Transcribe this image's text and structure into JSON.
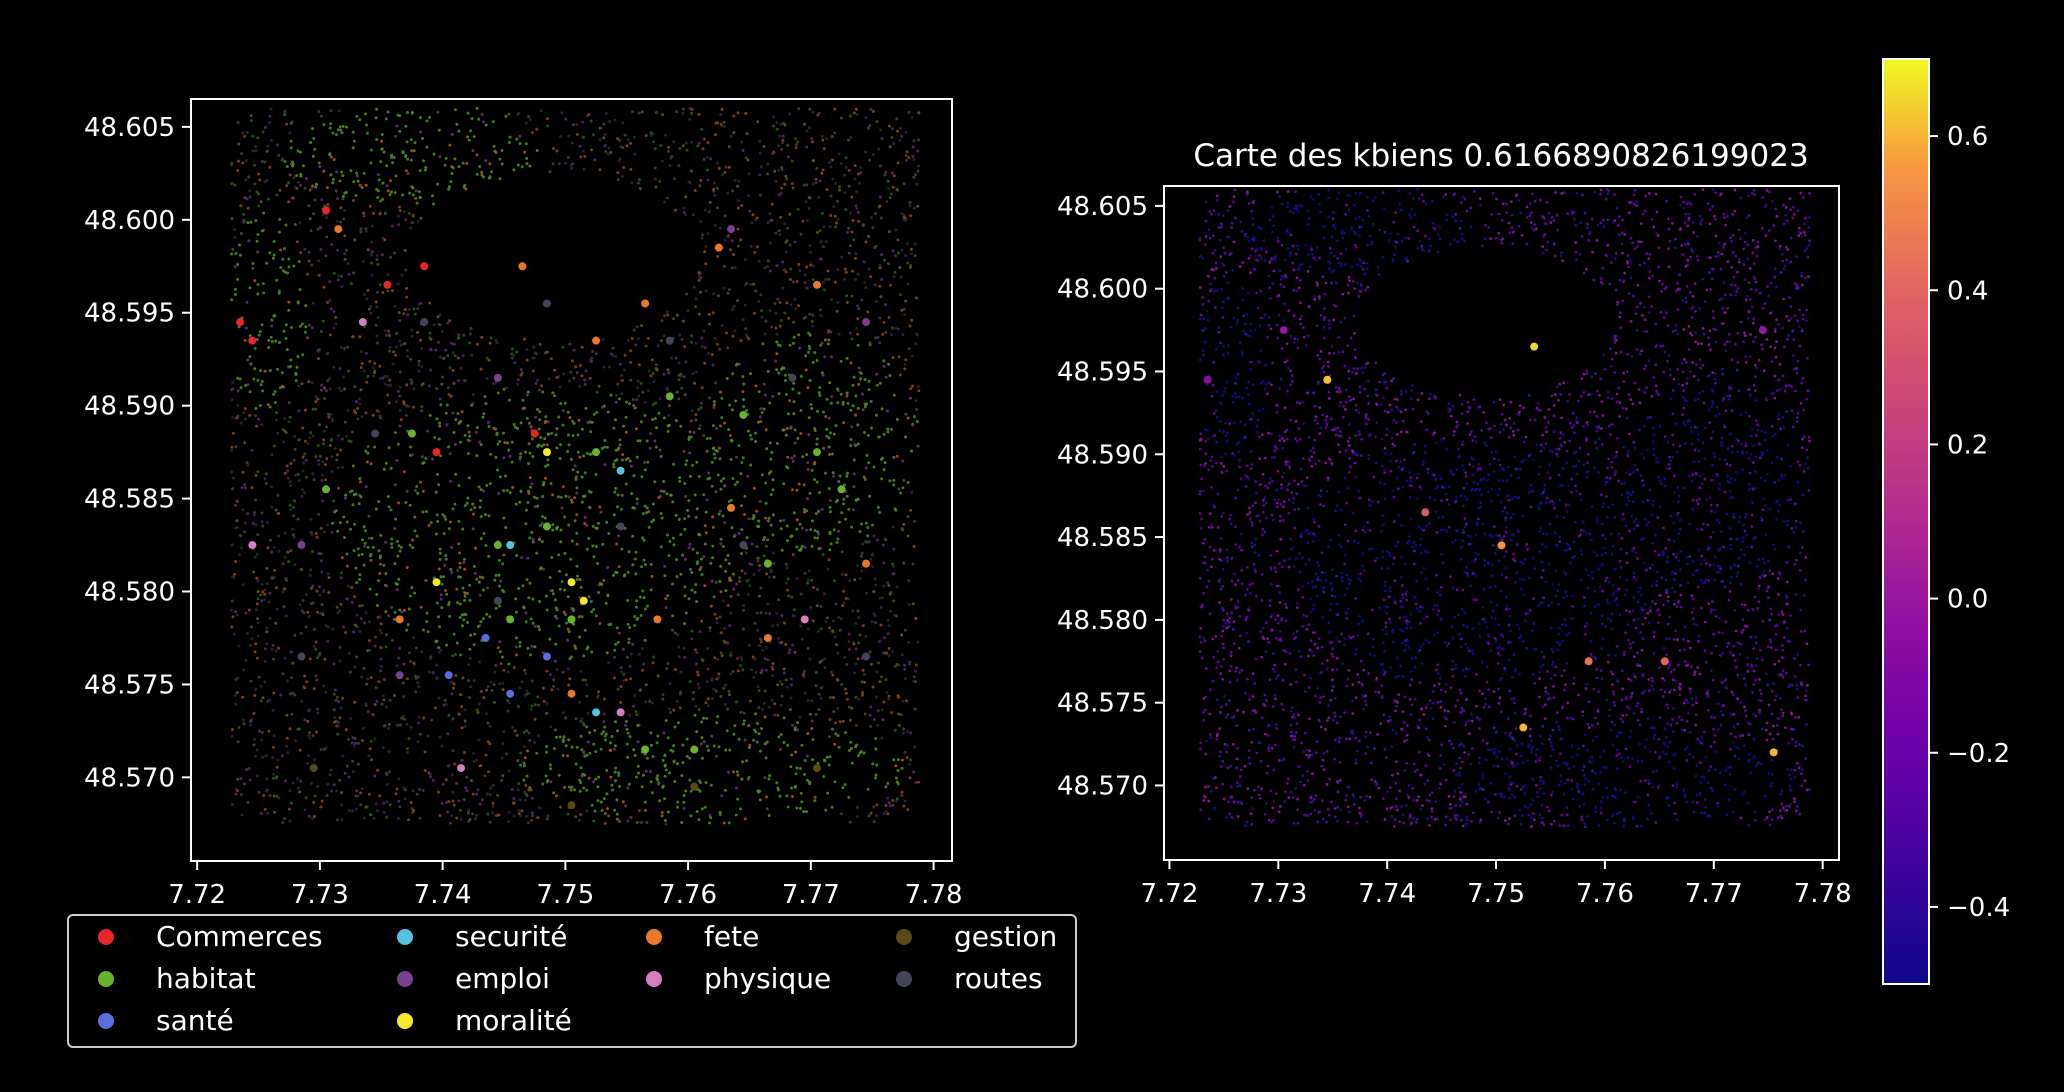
{
  "colors": {
    "background": "#000000",
    "axes_frame": "#ffffff",
    "text": "#ffffff"
  },
  "chart_data": [
    {
      "type": "scatter",
      "title": "",
      "xlabel": "",
      "ylabel": "",
      "xlim": [
        7.7195,
        7.7815
      ],
      "ylim": [
        48.5655,
        48.6065
      ],
      "x_ticks": [
        7.72,
        7.73,
        7.74,
        7.75,
        7.76,
        7.77,
        7.78
      ],
      "x_tick_labels": [
        "7.72",
        "7.73",
        "7.74",
        "7.75",
        "7.76",
        "7.77",
        "7.78"
      ],
      "y_ticks": [
        48.57,
        48.575,
        48.58,
        48.585,
        48.59,
        48.595,
        48.6,
        48.605
      ],
      "y_tick_labels": [
        "48.570",
        "48.575",
        "48.580",
        "48.585",
        "48.590",
        "48.595",
        "48.600",
        "48.605"
      ],
      "grid": false,
      "legend_placement": "bottom",
      "legend": [
        {
          "label": "Commerces",
          "color": "#e8262a"
        },
        {
          "label": "habitat",
          "color": "#67b22f"
        },
        {
          "label": "santé",
          "color": "#5b6ee0"
        },
        {
          "label": "securité",
          "color": "#55c3df"
        },
        {
          "label": "emploi",
          "color": "#7b3f8e"
        },
        {
          "label": "moralité",
          "color": "#f5ea2a"
        },
        {
          "label": "fete",
          "color": "#e8782a"
        },
        {
          "label": "physique",
          "color": "#d57ec0"
        },
        {
          "label": "gestion",
          "color": "#5a4a14"
        },
        {
          "label": "routes",
          "color": "#45455a"
        }
      ],
      "series": [
        {
          "name": "Commerces",
          "x": [
            7.7245,
            7.7305,
            7.7355,
            7.7385,
            7.7235,
            7.7395,
            7.7475
          ],
          "y": [
            48.5935,
            48.6005,
            48.5965,
            48.5975,
            48.5945,
            48.5875,
            48.5885
          ]
        },
        {
          "name": "habitat",
          "x": [
            7.7305,
            7.7375,
            7.7445,
            7.7485,
            7.7525,
            7.7585,
            7.7645,
            7.7705,
            7.7665,
            7.7725,
            7.7455,
            7.7505,
            7.7565,
            7.7605
          ],
          "y": [
            48.5855,
            48.5885,
            48.5825,
            48.5835,
            48.5875,
            48.5905,
            48.5895,
            48.5875,
            48.5815,
            48.5855,
            48.5785,
            48.5785,
            48.5715,
            48.5715
          ]
        },
        {
          "name": "santé",
          "x": [
            7.7405,
            7.7455,
            7.7485,
            7.7435
          ],
          "y": [
            48.5755,
            48.5745,
            48.5765,
            48.5775
          ]
        },
        {
          "name": "securité",
          "x": [
            7.7525,
            7.7455,
            7.7545
          ],
          "y": [
            48.5735,
            48.5825,
            48.5865
          ]
        },
        {
          "name": "emploi",
          "x": [
            7.7285,
            7.7365,
            7.7445,
            7.7635,
            7.7745
          ],
          "y": [
            48.5825,
            48.5755,
            48.5915,
            48.5995,
            48.5945
          ]
        },
        {
          "name": "moralité",
          "x": [
            7.7505,
            7.7395,
            7.7485,
            7.7515
          ],
          "y": [
            48.5805,
            48.5805,
            48.5875,
            48.5795
          ]
        },
        {
          "name": "fete",
          "x": [
            7.7315,
            7.7465,
            7.7525,
            7.7565,
            7.7625,
            7.7705,
            7.7665,
            7.7745,
            7.7575,
            7.7635,
            7.7505,
            7.7365
          ],
          "y": [
            48.5995,
            48.5975,
            48.5935,
            48.5955,
            48.5985,
            48.5965,
            48.5775,
            48.5815,
            48.5785,
            48.5845,
            48.5745,
            48.5785
          ]
        },
        {
          "name": "physique",
          "x": [
            7.7245,
            7.7335,
            7.7415,
            7.7695,
            7.7545
          ],
          "y": [
            48.5825,
            48.5945,
            48.5705,
            48.5785,
            48.5735
          ]
        },
        {
          "name": "gestion",
          "x": [
            7.7295,
            7.7505,
            7.7605,
            7.7705
          ],
          "y": [
            48.5705,
            48.5685,
            48.5695,
            48.5705
          ]
        },
        {
          "name": "routes",
          "x": [
            7.7345,
            7.7445,
            7.7545,
            7.7645,
            7.7745,
            7.7285,
            7.7385,
            7.7485,
            7.7585,
            7.7685
          ],
          "y": [
            48.5885,
            48.5795,
            48.5835,
            48.5825,
            48.5765,
            48.5765,
            48.5945,
            48.5955,
            48.5935,
            48.5915
          ]
        }
      ]
    },
    {
      "type": "scatter",
      "title": "Carte des kbiens 0.6166890826199023",
      "xlabel": "",
      "ylabel": "",
      "xlim": [
        7.7195,
        7.7815
      ],
      "ylim": [
        48.5655,
        48.6062
      ],
      "x_ticks": [
        7.72,
        7.73,
        7.74,
        7.75,
        7.76,
        7.77,
        7.78
      ],
      "x_tick_labels": [
        "7.72",
        "7.73",
        "7.74",
        "7.75",
        "7.76",
        "7.77",
        "7.78"
      ],
      "y_ticks": [
        48.57,
        48.575,
        48.58,
        48.585,
        48.59,
        48.595,
        48.6,
        48.605
      ],
      "y_tick_labels": [
        "48.570",
        "48.575",
        "48.580",
        "48.585",
        "48.590",
        "48.595",
        "48.600",
        "48.605"
      ],
      "grid": false,
      "colormap": "plasma",
      "colorbar": {
        "range": [
          -0.5,
          0.7
        ],
        "ticks": [
          -0.4,
          -0.2,
          0.0,
          0.2,
          0.4,
          0.6
        ],
        "tick_labels": [
          "−0.4",
          "−0.2",
          "0.0",
          "0.2",
          "0.4",
          "0.6"
        ]
      },
      "points": [
        {
          "x": 7.7535,
          "y": 48.5965,
          "v": 0.65
        },
        {
          "x": 7.7345,
          "y": 48.5945,
          "v": 0.62
        },
        {
          "x": 7.7525,
          "y": 48.5735,
          "v": 0.6
        },
        {
          "x": 7.7755,
          "y": 48.572,
          "v": 0.6
        },
        {
          "x": 7.7505,
          "y": 48.5845,
          "v": 0.55
        },
        {
          "x": 7.7585,
          "y": 48.5775,
          "v": 0.45
        },
        {
          "x": 7.7655,
          "y": 48.5775,
          "v": 0.4
        },
        {
          "x": 7.7435,
          "y": 48.5865,
          "v": 0.35
        },
        {
          "x": 7.7305,
          "y": 48.5975,
          "v": 0.0
        },
        {
          "x": 7.7745,
          "y": 48.5975,
          "v": 0.0
        },
        {
          "x": 7.7235,
          "y": 48.5945,
          "v": -0.05
        }
      ]
    }
  ]
}
